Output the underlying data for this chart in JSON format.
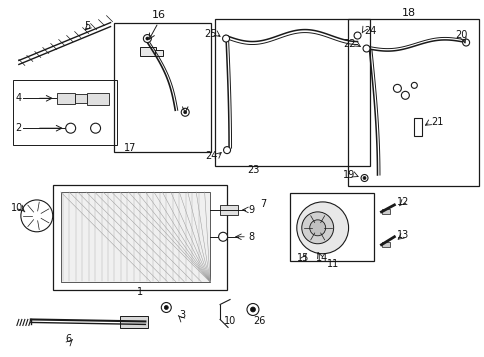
{
  "bg_color": "#ffffff",
  "line_color": "#1a1a1a",
  "fig_width": 4.85,
  "fig_height": 3.57,
  "dpi": 100
}
